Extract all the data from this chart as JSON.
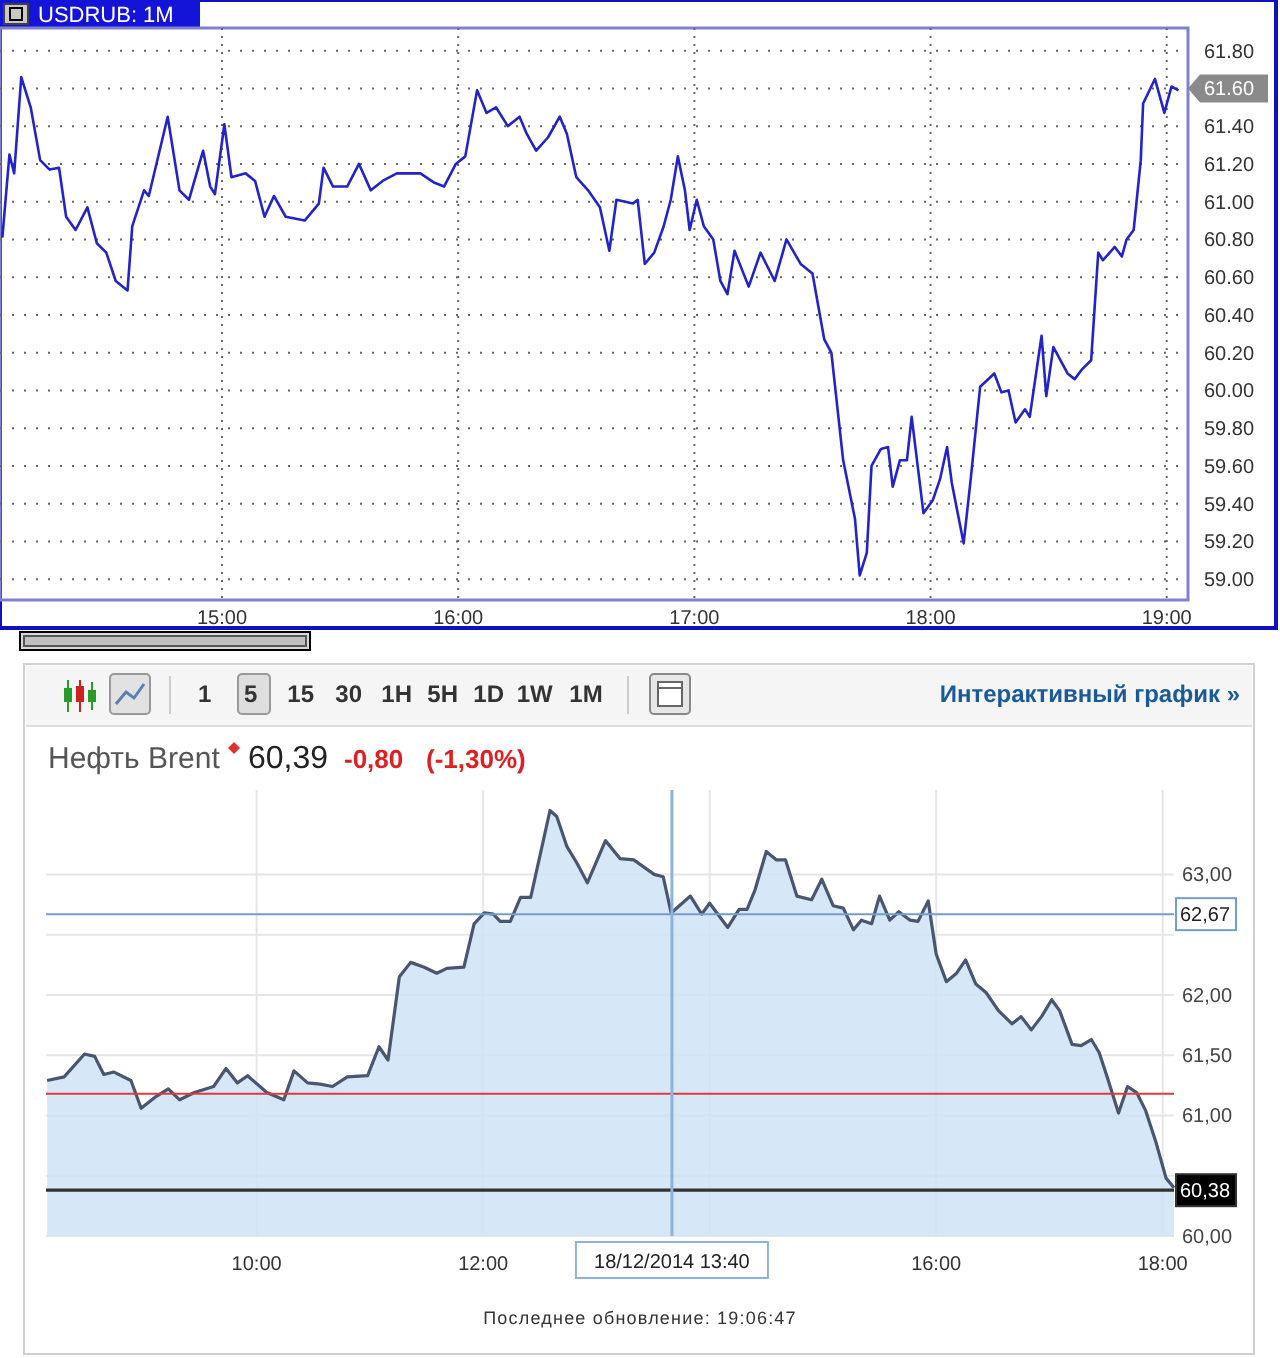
{
  "chart_data": [
    {
      "type": "line",
      "title": "USDRUB: 1M",
      "xlim": [
        14.06,
        19.09
      ],
      "ylim": [
        58.89,
        61.92
      ],
      "xticks": [
        {
          "value": 15,
          "label": "15:00"
        },
        {
          "value": 16,
          "label": "16:00"
        },
        {
          "value": 17,
          "label": "17:00"
        },
        {
          "value": 18,
          "label": "18:00"
        },
        {
          "value": 19,
          "label": "19:00"
        }
      ],
      "yticks": [
        {
          "value": 59,
          "label": "59.00"
        },
        {
          "value": 59.2,
          "label": "59.20"
        },
        {
          "value": 59.4,
          "label": "59.40"
        },
        {
          "value": 59.6,
          "label": "59.60"
        },
        {
          "value": 59.8,
          "label": "59.80"
        },
        {
          "value": 60,
          "label": "60.00"
        },
        {
          "value": 60.2,
          "label": "60.20"
        },
        {
          "value": 60.4,
          "label": "60.40"
        },
        {
          "value": 60.6,
          "label": "60.60"
        },
        {
          "value": 60.8,
          "label": "60.80"
        },
        {
          "value": 61,
          "label": "61.00"
        },
        {
          "value": 61.2,
          "label": "61.20"
        },
        {
          "value": 61.4,
          "label": "61.40"
        },
        {
          "value": 61.6,
          "label": null
        },
        {
          "value": 61.8,
          "label": "61.80"
        }
      ],
      "grid": true,
      "marker": "none",
      "annotations": [
        {
          "text": "61.60",
          "x": 19.09,
          "y": 61.6
        }
      ],
      "series": [
        {
          "color": "#2323cc",
          "x": [
            14.07,
            14.1,
            14.12,
            14.15,
            14.19,
            14.23,
            14.27,
            14.31,
            14.34,
            14.38,
            14.43,
            14.47,
            14.51,
            14.55,
            14.6,
            14.62,
            14.67,
            14.69,
            14.77,
            14.82,
            14.86,
            14.92,
            14.95,
            14.97,
            15.01,
            15.04,
            15.1,
            15.14,
            15.18,
            15.22,
            15.27,
            15.35,
            15.41,
            15.43,
            15.47,
            15.53,
            15.58,
            15.63,
            15.68,
            15.74,
            15.84,
            15.9,
            15.94,
            15.99,
            16.03,
            16.08,
            16.12,
            16.16,
            16.21,
            16.26,
            16.29,
            16.33,
            16.38,
            16.43,
            16.46,
            16.5,
            16.55,
            16.6,
            16.64,
            16.67,
            16.74,
            16.76,
            16.79,
            16.83,
            16.87,
            16.9,
            16.93,
            16.96,
            16.98,
            17.01,
            17.04,
            17.08,
            17.11,
            17.14,
            17.17,
            17.23,
            17.28,
            17.34,
            17.39,
            17.45,
            17.5,
            17.55,
            17.58,
            17.63,
            17.68,
            17.7,
            17.73,
            17.75,
            17.79,
            17.82,
            17.84,
            17.87,
            17.9,
            17.92,
            17.97,
            18.01,
            18.04,
            18.07,
            18.09,
            18.14,
            18.17,
            18.21,
            18.27,
            18.3,
            18.33,
            18.36,
            18.4,
            18.42,
            18.47,
            18.49,
            18.52,
            18.58,
            18.61,
            18.64,
            18.68,
            18.71,
            18.73,
            18.78,
            18.81,
            18.83,
            18.86,
            18.89,
            18.9,
            18.95,
            18.99,
            19.02,
            19.05
          ],
          "values": [
            60.81,
            61.25,
            61.15,
            61.66,
            61.5,
            61.22,
            61.17,
            61.18,
            60.92,
            60.85,
            60.97,
            60.78,
            60.73,
            60.58,
            60.53,
            60.87,
            61.06,
            61.03,
            61.45,
            61.06,
            61.01,
            61.27,
            61.08,
            61.04,
            61.41,
            61.13,
            61.15,
            61.11,
            60.92,
            61.03,
            60.92,
            60.9,
            60.99,
            61.18,
            61.08,
            61.08,
            61.2,
            61.06,
            61.11,
            61.15,
            61.15,
            61.1,
            61.08,
            61.2,
            61.24,
            61.59,
            61.47,
            61.5,
            61.4,
            61.45,
            61.36,
            61.27,
            61.34,
            61.45,
            61.36,
            61.13,
            61.06,
            60.97,
            60.74,
            61.01,
            60.99,
            61.01,
            60.67,
            60.73,
            60.87,
            61.01,
            61.24,
            61.06,
            60.85,
            61.01,
            60.87,
            60.8,
            60.58,
            60.51,
            60.74,
            60.55,
            60.73,
            60.58,
            60.8,
            60.67,
            60.62,
            60.27,
            60.2,
            59.63,
            59.32,
            59.02,
            59.14,
            59.6,
            59.69,
            59.7,
            59.49,
            59.63,
            59.63,
            59.86,
            59.35,
            59.42,
            59.53,
            59.7,
            59.51,
            59.19,
            59.53,
            60.02,
            60.09,
            59.99,
            60,
            59.83,
            59.9,
            59.86,
            60.29,
            59.97,
            60.23,
            60.09,
            60.06,
            60.11,
            60.16,
            60.73,
            60.69,
            60.76,
            60.71,
            60.8,
            60.85,
            61.22,
            61.52,
            61.65,
            61.47,
            61.61,
            61.59
          ]
        }
      ]
    },
    {
      "type": "area",
      "title": "Нефть Brent",
      "subtitle": "60,39",
      "xlim": [
        8.14,
        18.1
      ],
      "ylim": [
        60,
        63.7
      ],
      "xticks": [
        {
          "value": 10,
          "label": "10:00"
        },
        {
          "value": 12,
          "label": "12:00"
        },
        {
          "value": 14,
          "label": null
        },
        {
          "value": 16,
          "label": "16:00"
        },
        {
          "value": 18,
          "label": "18:00"
        }
      ],
      "yticks": [
        {
          "value": 60,
          "label": "60,00"
        },
        {
          "value": 60.5,
          "label": null
        },
        {
          "value": 61,
          "label": "61,00"
        },
        {
          "value": 61.5,
          "label": "61,50"
        },
        {
          "value": 62,
          "label": "62,00"
        },
        {
          "value": 62.5,
          "label": null
        },
        {
          "value": 63,
          "label": "63,00"
        }
      ],
      "grid": true,
      "marker": "none",
      "ref_lines": [
        {
          "axis": "y",
          "value": 62.67,
          "label": "62,67",
          "color": "#6f9fd0"
        },
        {
          "axis": "y",
          "value": 61.18,
          "color": "#e03a3a"
        },
        {
          "axis": "y",
          "value": 60.38,
          "label": "60,38",
          "color": "#333333"
        },
        {
          "axis": "x",
          "value": 13.6667,
          "color": "#8db3dc"
        }
      ],
      "annotations": [
        "-0,80",
        "(-1,30%)",
        "1 5 15 30 1H 5H 1D 1W 1M",
        "Интерактивный график »",
        "18/12/2014 13:40",
        "Последнее обновление: 19:06:47"
      ],
      "series": [
        {
          "color": "#4a5670",
          "x": [
            8.15,
            8.3,
            8.48,
            8.57,
            8.65,
            8.74,
            8.89,
            8.98,
            9.1,
            9.22,
            9.32,
            9.45,
            9.62,
            9.73,
            9.83,
            9.92,
            10.09,
            10.24,
            10.33,
            10.45,
            10.56,
            10.67,
            10.8,
            10.98,
            11.08,
            11.16,
            11.26,
            11.36,
            11.48,
            11.59,
            11.68,
            11.83,
            11.92,
            12.01,
            12.09,
            12.15,
            12.24,
            12.33,
            12.42,
            12.59,
            12.65,
            12.74,
            12.83,
            12.92,
            13.08,
            13.21,
            13.33,
            13.51,
            13.59,
            13.66,
            13.83,
            13.93,
            14,
            14.16,
            14.26,
            14.33,
            14.4,
            14.5,
            14.59,
            14.67,
            14.77,
            14.9,
            14.99,
            15.09,
            15.18,
            15.27,
            15.34,
            15.43,
            15.5,
            15.59,
            15.67,
            15.77,
            15.84,
            15.93,
            16,
            16.09,
            16.18,
            16.26,
            16.35,
            16.44,
            16.55,
            16.67,
            16.75,
            16.84,
            16.93,
            17.02,
            17.09,
            17.2,
            17.28,
            17.37,
            17.44,
            17.51,
            17.61,
            17.69,
            17.77,
            17.85,
            17.94,
            18.03,
            18.1
          ],
          "values": [
            61.29,
            61.32,
            61.51,
            61.49,
            61.34,
            61.36,
            61.29,
            61.06,
            61.15,
            61.22,
            61.13,
            61.19,
            61.24,
            61.39,
            61.27,
            61.33,
            61.19,
            61.13,
            61.37,
            61.27,
            61.26,
            61.24,
            61.32,
            61.33,
            61.57,
            61.46,
            62.15,
            62.27,
            62.23,
            62.18,
            62.22,
            62.23,
            62.59,
            62.68,
            62.67,
            62.61,
            62.61,
            62.81,
            62.81,
            63.53,
            63.48,
            63.23,
            63.09,
            62.93,
            63.28,
            63.13,
            63.12,
            63,
            62.98,
            62.68,
            62.82,
            62.67,
            62.76,
            62.56,
            62.71,
            62.71,
            62.87,
            63.19,
            63.12,
            63.12,
            62.82,
            62.79,
            62.96,
            62.74,
            62.72,
            62.54,
            62.62,
            62.59,
            62.82,
            62.62,
            62.69,
            62.62,
            62.61,
            62.78,
            62.34,
            62.11,
            62.18,
            62.29,
            62.09,
            62.02,
            61.87,
            61.76,
            61.82,
            61.71,
            61.82,
            61.96,
            61.87,
            61.59,
            61.58,
            61.63,
            61.52,
            61.32,
            61.02,
            61.24,
            61.19,
            61.04,
            60.78,
            60.48,
            60.4
          ]
        }
      ]
    }
  ]
}
